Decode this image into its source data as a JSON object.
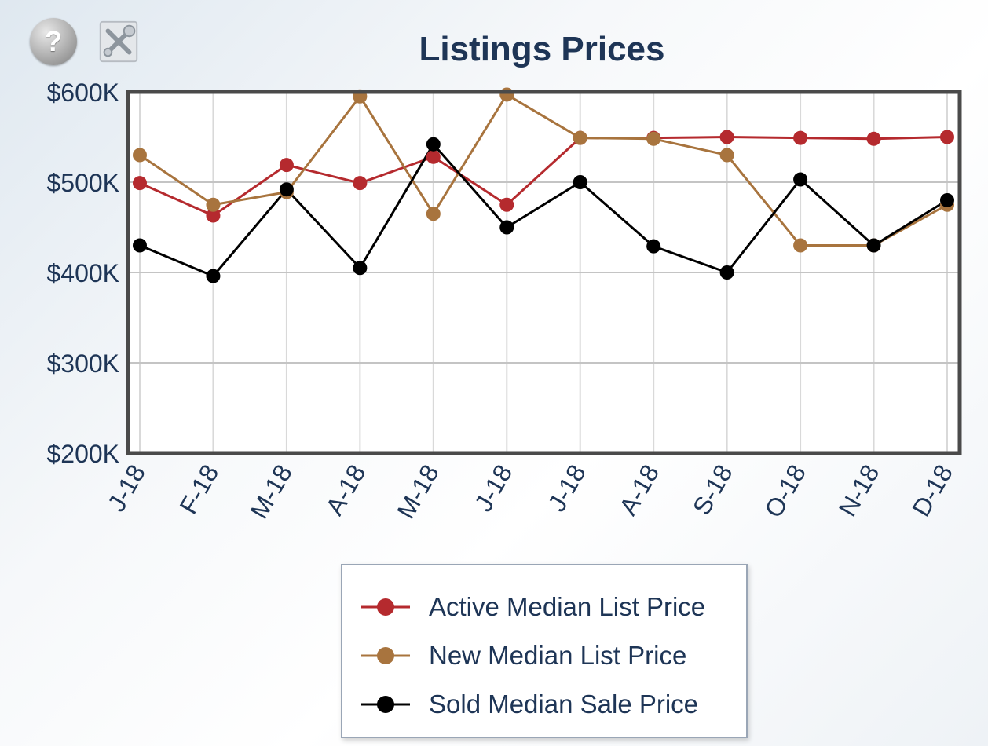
{
  "chart_data": {
    "type": "line",
    "title": "Listings Prices",
    "xlabel": "",
    "ylabel": "",
    "categories": [
      "J-18",
      "F-18",
      "M-18",
      "A-18",
      "M-18",
      "J-18",
      "J-18",
      "A-18",
      "S-18",
      "O-18",
      "N-18",
      "D-18"
    ],
    "ylim": [
      200000,
      600000
    ],
    "yticks": [
      200000,
      300000,
      400000,
      500000,
      600000
    ],
    "ytick_labels": [
      "$200K",
      "$300K",
      "$400K",
      "$500K",
      "$600K"
    ],
    "grid": true,
    "legend_position": "bottom",
    "series": [
      {
        "name": "Active Median List Price",
        "color": "#b52a2e",
        "values": [
          499000,
          463000,
          519000,
          499000,
          528000,
          475000,
          549000,
          549000,
          550000,
          549000,
          548000,
          550000
        ]
      },
      {
        "name": "New Median List Price",
        "color": "#a8743e",
        "values": [
          530000,
          475000,
          489000,
          595000,
          465000,
          597000,
          549000,
          548000,
          530000,
          430000,
          430000,
          475000
        ]
      },
      {
        "name": "Sold Median Sale Price",
        "color": "#000000",
        "values": [
          430000,
          396000,
          492000,
          405000,
          542000,
          450000,
          500000,
          429000,
          400000,
          503000,
          430000,
          480000
        ]
      }
    ]
  },
  "toolbar": {
    "help_icon": "question-circle-icon",
    "tools_icon": "wrench-screwdriver-icon",
    "help_glyph": "?"
  }
}
